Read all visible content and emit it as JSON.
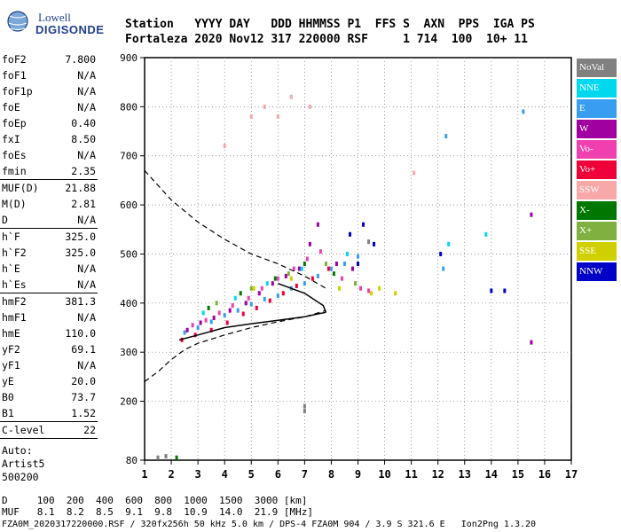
{
  "logo": {
    "line1": "Lowell",
    "line2": "DIGISONDE"
  },
  "header": {
    "labels": "Station   YYYY DAY   DDD HHMMSS P1  FFS S  AXN  PPS  IGA PS",
    "values": "Fortaleza 2020 Nov12 317 220000 RSF     1 714  100  10+ 11"
  },
  "params": [
    {
      "k": "foF2",
      "v": "7.800"
    },
    {
      "k": "foF1",
      "v": "N/A"
    },
    {
      "k": "foF1p",
      "v": "N/A"
    },
    {
      "k": "foE",
      "v": "N/A"
    },
    {
      "k": "foEp",
      "v": "0.40"
    },
    {
      "k": "fxI",
      "v": "8.50"
    },
    {
      "k": "foEs",
      "v": "N/A"
    },
    {
      "k": "fmin",
      "v": "2.35"
    },
    {
      "k": "MUF(D)",
      "v": "21.88"
    },
    {
      "k": "M(D)",
      "v": "2.81"
    },
    {
      "k": "D",
      "v": "N/A"
    },
    {
      "k": "h`F",
      "v": "325.0"
    },
    {
      "k": "h`F2",
      "v": "325.0"
    },
    {
      "k": "h`E",
      "v": "N/A"
    },
    {
      "k": "h`Es",
      "v": "N/A"
    },
    {
      "k": "hmF2",
      "v": "381.3"
    },
    {
      "k": "hmF1",
      "v": "N/A"
    },
    {
      "k": "hmE",
      "v": "110.0"
    },
    {
      "k": "yF2",
      "v": "69.1"
    },
    {
      "k": "yF1",
      "v": "N/A"
    },
    {
      "k": "yE",
      "v": "20.0"
    },
    {
      "k": "B0",
      "v": "73.7"
    },
    {
      "k": "B1",
      "v": "1.52"
    },
    {
      "k": "C-level",
      "v": "22"
    }
  ],
  "auto": [
    "Auto:",
    "Artist5",
    "500200"
  ],
  "legend": [
    {
      "label": "NoVal",
      "color": "#808080"
    },
    {
      "label": "NNE",
      "color": "#00d8f0"
    },
    {
      "label": "E",
      "color": "#3a9ef0"
    },
    {
      "label": "W",
      "color": "#a000a0"
    },
    {
      "label": "Vo-",
      "color": "#f040b0"
    },
    {
      "label": "Vo+",
      "color": "#f00038"
    },
    {
      "label": "SSW",
      "color": "#f8a8a8"
    },
    {
      "label": "X-",
      "color": "#007800"
    },
    {
      "label": "X+",
      "color": "#80b040"
    },
    {
      "label": "SSE",
      "color": "#d0d000"
    },
    {
      "label": "NNW",
      "color": "#0000c8"
    }
  ],
  "bottom": {
    "d_row": "D     100  200  400  600  800  1000  1500  3000 [km]",
    "muf_row": "MUF   8.1  8.2  8.5  9.1  9.8  10.9  14.0  21.9 [MHz]",
    "footer": "FZA0M_2020317220000.RSF / 320fx256h 50 kHz 5.0 km / DPS-4 FZA0M 904 / 3.9 S 321.6 E   Ion2Png 1.3.20"
  },
  "chart_data": {
    "type": "scatter",
    "title": "",
    "xlabel": "",
    "ylabel": "",
    "xlim": [
      1,
      17
    ],
    "ylim": [
      80,
      900
    ],
    "xticks": [
      1,
      2,
      3,
      4,
      5,
      6,
      7,
      8,
      9,
      10,
      11,
      12,
      13,
      14,
      15,
      16,
      17
    ],
    "yticks": [
      80,
      200,
      300,
      400,
      500,
      600,
      700,
      800,
      900
    ],
    "grid": "dotted",
    "legend_position": "right",
    "profile_solid": [
      [
        2.3,
        325
      ],
      [
        3.0,
        335
      ],
      [
        4.0,
        350
      ],
      [
        5.0,
        358
      ],
      [
        6.0,
        365
      ],
      [
        7.0,
        372
      ],
      [
        7.5,
        378
      ],
      [
        7.8,
        381
      ]
    ],
    "profile_solid_upper": [
      [
        7.8,
        381
      ],
      [
        7.7,
        395
      ],
      [
        7.0,
        420
      ],
      [
        6.0,
        440
      ]
    ],
    "trace_model_lower": [
      [
        1.0,
        240
      ],
      [
        1.5,
        260
      ],
      [
        2.0,
        285
      ],
      [
        2.5,
        305
      ],
      [
        3.0,
        318
      ],
      [
        4.0,
        335
      ],
      [
        5.0,
        350
      ],
      [
        6.0,
        362
      ],
      [
        7.0,
        372
      ],
      [
        7.5,
        380
      ],
      [
        7.8,
        385
      ]
    ],
    "extrapolation_upper": [
      [
        1.0,
        670
      ],
      [
        2.0,
        610
      ],
      [
        3.0,
        565
      ],
      [
        4.0,
        530
      ],
      [
        5.0,
        500
      ],
      [
        6.0,
        480
      ],
      [
        7.0,
        455
      ],
      [
        7.8,
        430
      ]
    ],
    "series": [
      {
        "legend": "E",
        "color": "#3a9ef0",
        "points": [
          [
            2.5,
            340
          ],
          [
            3.0,
            350
          ],
          [
            3.5,
            362
          ],
          [
            4.0,
            375
          ],
          [
            4.5,
            385
          ],
          [
            5.0,
            398
          ],
          [
            5.5,
            408
          ],
          [
            6.0,
            415
          ],
          [
            6.5,
            430
          ],
          [
            7.0,
            440
          ],
          [
            7.5,
            455
          ],
          [
            8.0,
            470
          ],
          [
            8.5,
            480
          ],
          [
            9.0,
            495
          ],
          [
            12.2,
            470
          ],
          [
            12.3,
            740
          ],
          [
            15.2,
            790
          ]
        ]
      },
      {
        "legend": "W",
        "color": "#a000a0",
        "points": [
          [
            2.6,
            345
          ],
          [
            3.1,
            360
          ],
          [
            3.6,
            370
          ],
          [
            4.2,
            385
          ],
          [
            4.8,
            400
          ],
          [
            5.3,
            420
          ],
          [
            5.8,
            440
          ],
          [
            6.3,
            455
          ],
          [
            6.8,
            470
          ],
          [
            7.2,
            520
          ],
          [
            7.5,
            560
          ],
          [
            8.2,
            480
          ],
          [
            8.8,
            470
          ],
          [
            15.5,
            320
          ],
          [
            15.5,
            580
          ]
        ]
      },
      {
        "legend": "Vo-",
        "color": "#f040b0",
        "points": [
          [
            2.8,
            355
          ],
          [
            3.3,
            365
          ],
          [
            3.8,
            380
          ],
          [
            4.3,
            395
          ],
          [
            4.9,
            410
          ],
          [
            5.4,
            430
          ],
          [
            6.0,
            450
          ],
          [
            6.6,
            470
          ],
          [
            7.1,
            490
          ],
          [
            7.6,
            505
          ],
          [
            8.4,
            450
          ],
          [
            9.1,
            430
          ],
          [
            9.4,
            425
          ]
        ]
      },
      {
        "legend": "Vo+",
        "color": "#f00038",
        "points": [
          [
            2.4,
            325
          ],
          [
            2.9,
            335
          ],
          [
            3.5,
            345
          ],
          [
            4.1,
            360
          ],
          [
            4.7,
            378
          ],
          [
            5.2,
            390
          ],
          [
            5.7,
            405
          ],
          [
            6.2,
            420
          ],
          [
            6.7,
            435
          ],
          [
            7.3,
            450
          ],
          [
            7.9,
            470
          ]
        ]
      },
      {
        "legend": "NNE",
        "color": "#00d8f0",
        "points": [
          [
            3.2,
            380
          ],
          [
            4.4,
            410
          ],
          [
            5.6,
            440
          ],
          [
            6.9,
            470
          ],
          [
            8.6,
            500
          ],
          [
            12.4,
            520
          ],
          [
            13.8,
            540
          ]
        ]
      },
      {
        "legend": "X-",
        "color": "#007800",
        "points": [
          [
            3.4,
            390
          ],
          [
            4.6,
            420
          ],
          [
            5.9,
            450
          ],
          [
            7.0,
            480
          ],
          [
            8.1,
            460
          ],
          [
            2.2,
            85
          ]
        ]
      },
      {
        "legend": "X+",
        "color": "#80b040",
        "points": [
          [
            3.7,
            400
          ],
          [
            5.0,
            430
          ],
          [
            6.4,
            460
          ],
          [
            7.8,
            480
          ],
          [
            8.9,
            440
          ]
        ]
      },
      {
        "legend": "SSE",
        "color": "#d0d000",
        "points": [
          [
            5.1,
            430
          ],
          [
            6.5,
            450
          ],
          [
            8.3,
            430
          ],
          [
            9.5,
            420
          ],
          [
            10.4,
            420
          ],
          [
            9.8,
            430
          ]
        ]
      },
      {
        "legend": "SSW",
        "color": "#f8a8a8",
        "points": [
          [
            4.0,
            720
          ],
          [
            5.0,
            780
          ],
          [
            5.5,
            800
          ],
          [
            6.0,
            780
          ],
          [
            6.5,
            820
          ],
          [
            7.2,
            800
          ],
          [
            11.1,
            665
          ]
        ]
      },
      {
        "legend": "NNW",
        "color": "#0000c8",
        "points": [
          [
            8.7,
            540
          ],
          [
            9.2,
            560
          ],
          [
            9.0,
            480
          ],
          [
            9.6,
            520
          ],
          [
            12.1,
            500
          ],
          [
            14.0,
            425
          ],
          [
            14.5,
            425
          ]
        ]
      },
      {
        "legend": "NoVal",
        "color": "#808080",
        "points": [
          [
            1.5,
            85
          ],
          [
            1.8,
            88
          ],
          [
            7.0,
            190
          ],
          [
            7.0,
            180
          ],
          [
            9.4,
            525
          ]
        ]
      }
    ]
  }
}
